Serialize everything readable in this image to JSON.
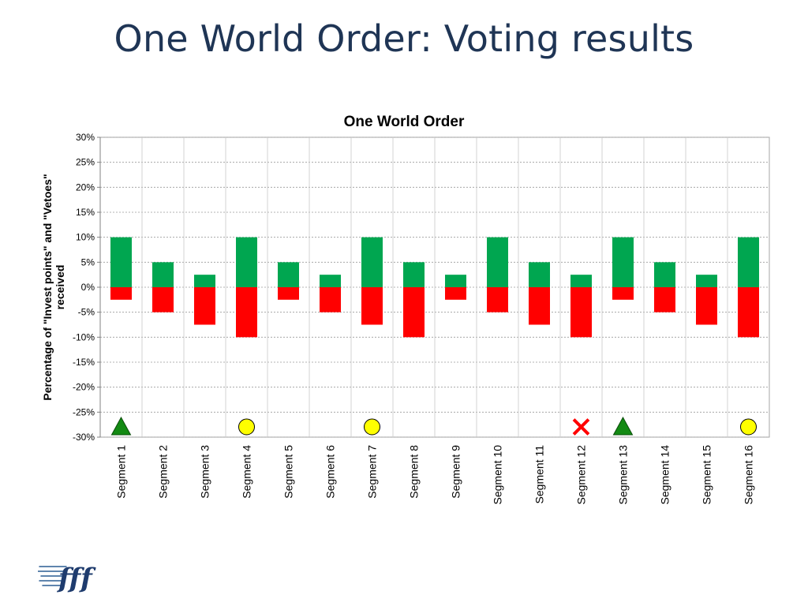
{
  "slide": {
    "title": "One World Order: Voting results"
  },
  "chart_data": {
    "type": "bar",
    "title": "One World Order",
    "xlabel": "",
    "ylabel": "Percentage of \"Invest points\" and \"Vetoes\" received",
    "ylim": [
      -0.3,
      0.3
    ],
    "yticks": [
      0.3,
      0.25,
      0.2,
      0.15,
      0.1,
      0.05,
      0.0,
      -0.05,
      -0.1,
      -0.15,
      -0.2,
      -0.25,
      -0.3
    ],
    "ytick_labels": [
      "30%",
      "25%",
      "20%",
      "15%",
      "10%",
      "5%",
      "0%",
      "-5%",
      "-10%",
      "-15%",
      "-20%",
      "-25%",
      "-30%"
    ],
    "grid": true,
    "categories": [
      "Segment 1",
      "Segment 2",
      "Segment 3",
      "Segment 4",
      "Segment 5",
      "Segment 6",
      "Segment 7",
      "Segment 8",
      "Segment 9",
      "Segment 10",
      "Segment 11",
      "Segment 12",
      "Segment 13",
      "Segment 14",
      "Segment 15",
      "Segment 16"
    ],
    "series": [
      {
        "color": "#00a650",
        "values": [
          0.1,
          0.05,
          0.025,
          0.1,
          0.05,
          0.025,
          0.1,
          0.05,
          0.025,
          0.1,
          0.05,
          0.025,
          0.1,
          0.05,
          0.025,
          0.1
        ]
      },
      {
        "color": "#ff0000",
        "values": [
          -0.025,
          -0.05,
          -0.075,
          -0.1,
          -0.025,
          -0.05,
          -0.075,
          -0.1,
          -0.025,
          -0.05,
          -0.075,
          -0.1,
          -0.025,
          -0.05,
          -0.075,
          -0.1
        ]
      }
    ],
    "markers": [
      {
        "category": "Segment 1",
        "shape": "triangle",
        "color": "#138a13"
      },
      {
        "category": "Segment 4",
        "shape": "circle",
        "color": "#ffff00"
      },
      {
        "category": "Segment 7",
        "shape": "circle",
        "color": "#ffff00"
      },
      {
        "category": "Segment 12",
        "shape": "cross",
        "color": "#ff0000"
      },
      {
        "category": "Segment 13",
        "shape": "triangle",
        "color": "#138a13"
      },
      {
        "category": "Segment 16",
        "shape": "circle",
        "color": "#ffff00"
      }
    ]
  },
  "logo": {
    "text": "fff"
  }
}
